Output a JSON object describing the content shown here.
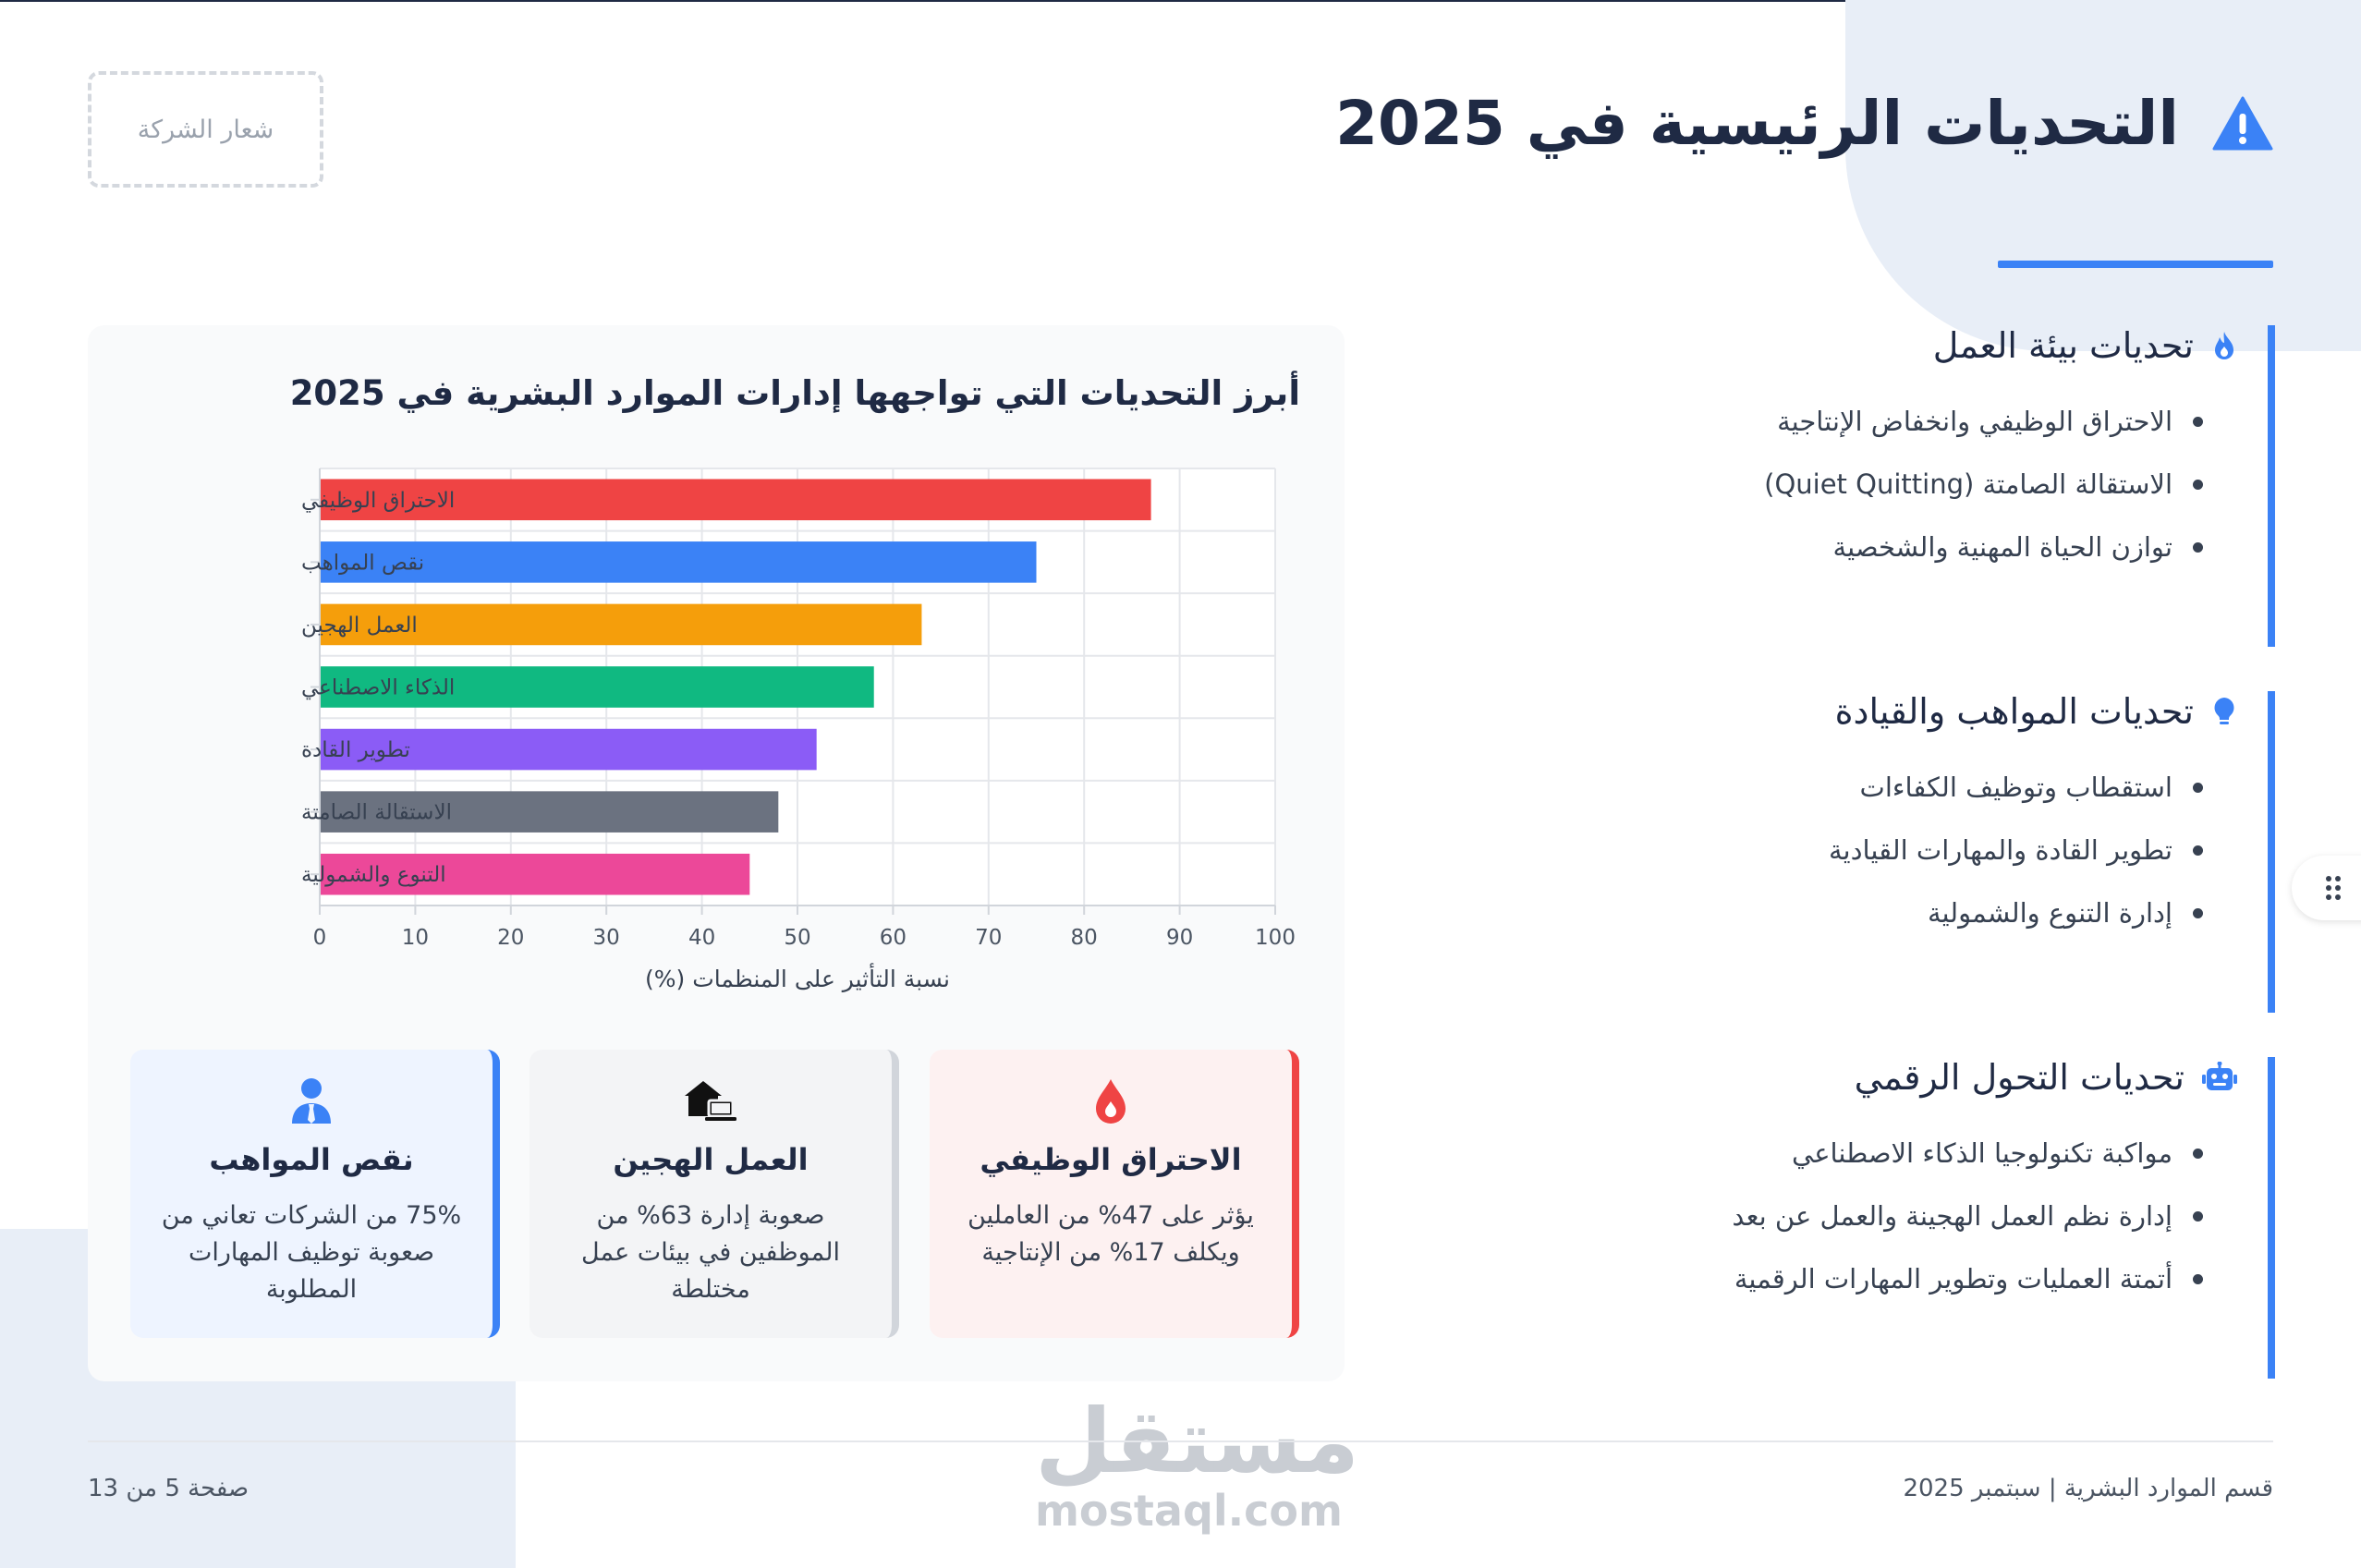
{
  "header": {
    "title": "التحديات الرئيسية في 2025",
    "logo_placeholder": "شعار الشركة",
    "accent_color": "#3b82f6"
  },
  "categories": [
    {
      "title": "تحديات بيئة العمل",
      "icon": "fire-icon",
      "items": [
        "الاحتراق الوظيفي وانخفاض الإنتاجية",
        "الاستقالة الصامتة (Quiet Quitting)",
        "توازن الحياة المهنية والشخصية"
      ]
    },
    {
      "title": "تحديات المواهب والقيادة",
      "icon": "lightbulb-icon",
      "items": [
        "استقطاب وتوظيف الكفاءات",
        "تطوير القادة والمهارات القيادية",
        "إدارة التنوع والشمولية"
      ]
    },
    {
      "title": "تحديات التحول الرقمي",
      "icon": "robot-icon",
      "items": [
        "مواكبة تكنولوجيا الذكاء الاصطناعي",
        "إدارة نظم العمل الهجينة والعمل عن بعد",
        "أتمتة العمليات وتطوير المهارات الرقمية"
      ]
    }
  ],
  "chart_data": {
    "type": "bar",
    "orientation": "horizontal",
    "title": "أبرز التحديات التي تواجهها إدارات الموارد البشرية في 2025",
    "xlabel": "نسبة التأثير على المنظمات (%)",
    "ylabel": "",
    "xlim": [
      0,
      100
    ],
    "xticks": [
      "0",
      "10",
      "20",
      "30",
      "40",
      "50",
      "60",
      "70",
      "80",
      "90",
      "100"
    ],
    "grid": true,
    "categories": [
      "الاحتراق الوظيفي",
      "نقص المواهب",
      "العمل الهجين",
      "الذكاء الاصطناعي",
      "تطوير القادة",
      "الاستقالة الصامتة",
      "التنوع والشمولية"
    ],
    "values": [
      87,
      75,
      63,
      58,
      52,
      48,
      45
    ],
    "colors": [
      "#ef4444",
      "#3b82f6",
      "#f59e0b",
      "#10b981",
      "#8b5cf6",
      "#6b7280",
      "#ec4899"
    ]
  },
  "stats": [
    {
      "title": "الاحتراق الوظيفي",
      "text": "يؤثر على 47% من العاملين ويكلف 17% من الإنتاجية",
      "icon": "fire-drop-icon",
      "color": "#ef4444"
    },
    {
      "title": "العمل الهجين",
      "text": "صعوبة إدارة 63% من الموظفين في بيئات عمل مختلطة",
      "icon": "house-laptop-icon",
      "color": "#111111"
    },
    {
      "title": "نقص المواهب",
      "text": "75% من الشركات تعاني من صعوبة توظيف المهارات المطلوبة",
      "icon": "user-tie-icon",
      "color": "#3b82f6"
    }
  ],
  "footer": {
    "department": "قسم الموارد البشرية | سبتمبر 2025",
    "page": "صفحة 5 من 13"
  },
  "watermark": {
    "arabic": "مستقل",
    "latin": "mostaql.com"
  }
}
